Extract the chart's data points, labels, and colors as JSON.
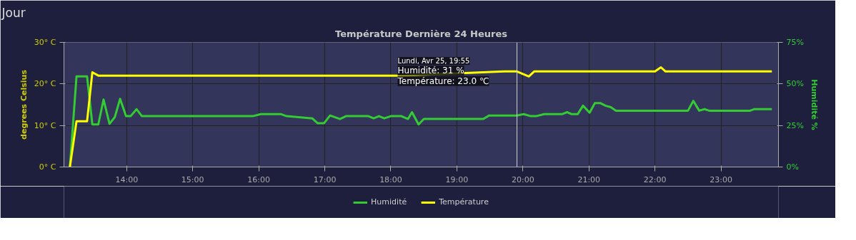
{
  "chart_data": {
    "type": "line",
    "title": "Température Dernière 24 Heures",
    "ylabel": "degrees Celsius",
    "y2label": "Humidité %",
    "annotations": [
      "Jour",
      "Lundi, Avr 25, 19:55",
      "Humidité: 31 %",
      "Température: 23.0 ℃"
    ],
    "xlim": [
      13.05,
      23.87
    ],
    "xticks": [
      {
        "value": 14,
        "label": "14:00"
      },
      {
        "value": 15,
        "label": "15:00"
      },
      {
        "value": 16,
        "label": "16:00"
      },
      {
        "value": 17,
        "label": "17:00"
      },
      {
        "value": 18,
        "label": "18:00"
      },
      {
        "value": 19,
        "label": "19:00"
      },
      {
        "value": 20,
        "label": "20:00"
      },
      {
        "value": 21,
        "label": "21:00"
      },
      {
        "value": 22,
        "label": "22:00"
      },
      {
        "value": 23,
        "label": "23:00"
      }
    ],
    "ylim": [
      0,
      30
    ],
    "yticks": [
      {
        "value": 0,
        "label": "0° C"
      },
      {
        "value": 10,
        "label": "10° C"
      },
      {
        "value": 20,
        "label": "20° C"
      },
      {
        "value": 30,
        "label": "30° C"
      }
    ],
    "y2lim": [
      0,
      75
    ],
    "y2ticks": [
      {
        "value": 0,
        "label": "0%"
      },
      {
        "value": 25,
        "label": "25%"
      },
      {
        "value": 50,
        "label": "50%"
      },
      {
        "value": 75,
        "label": "75%"
      }
    ],
    "series": [
      {
        "name": "Humidité",
        "color": "#33cc33",
        "axis": "y2",
        "x": [
          13.14,
          13.24,
          13.4,
          13.48,
          13.57,
          13.65,
          13.74,
          13.82,
          13.9,
          13.99,
          14.06,
          14.15,
          14.23,
          15.91,
          16.03,
          16.34,
          16.42,
          16.81,
          16.89,
          16.99,
          17.08,
          17.23,
          17.32,
          17.66,
          17.74,
          17.82,
          17.9,
          18.0,
          18.16,
          18.26,
          18.32,
          18.42,
          18.5,
          19.4,
          19.49,
          19.91,
          20.01,
          20.12,
          20.2,
          20.32,
          20.59,
          20.67,
          20.74,
          20.83,
          20.91,
          21.01,
          21.09,
          21.17,
          21.25,
          21.33,
          21.41,
          22.5,
          22.58,
          22.67,
          22.75,
          22.82,
          23.44,
          23.5,
          23.77
        ],
        "values": [
          0,
          54.5,
          54.5,
          25.6,
          25.6,
          40.6,
          26,
          30,
          41,
          30.6,
          30.6,
          34.8,
          30.6,
          30.6,
          31.8,
          31.8,
          30.6,
          29.3,
          26.4,
          26.4,
          31,
          28.9,
          30.6,
          30.6,
          29.3,
          30.6,
          29.3,
          30.6,
          30.6,
          28.9,
          33,
          25.6,
          28.9,
          28.9,
          31,
          31,
          31.8,
          30.6,
          30.6,
          31.8,
          31.8,
          33,
          31.8,
          31.8,
          36.9,
          32.7,
          38.5,
          38.5,
          36.9,
          36,
          33.9,
          33.9,
          39.8,
          33.9,
          34.8,
          33.9,
          33.9,
          34.8,
          34.8
        ]
      },
      {
        "name": "Température",
        "color": "#ffff00",
        "x": [
          13.14,
          13.24,
          13.4,
          13.48,
          13.57,
          18.16,
          19.72,
          19.91,
          20.09,
          20.17,
          22.0,
          22.09,
          22.16,
          23.77
        ],
        "values": [
          0,
          11,
          11,
          22.8,
          22,
          22,
          23,
          23,
          21.8,
          23,
          23,
          24,
          23,
          23
        ]
      }
    ],
    "ref_lines": [
      {
        "axis": "x",
        "value": 19.91,
        "color": "#cccccc"
      }
    ],
    "grid": true,
    "legend": "bottom",
    "marker": "none",
    "line_style": "solid"
  }
}
